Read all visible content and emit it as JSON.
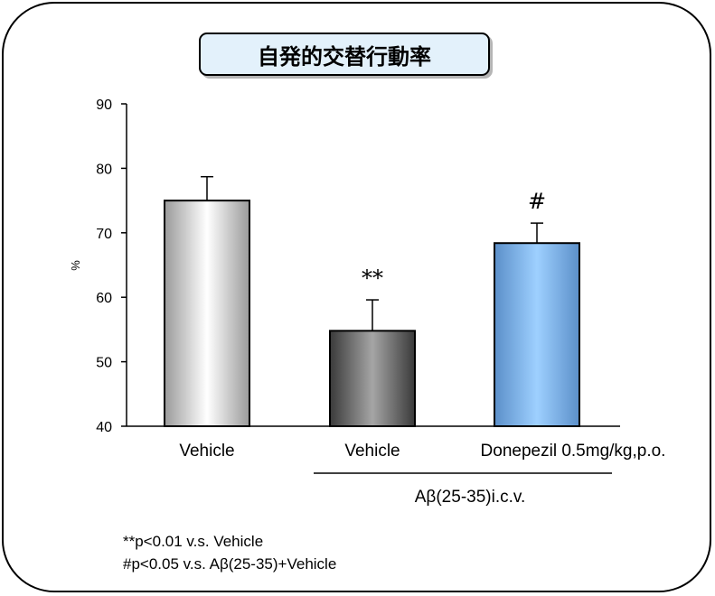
{
  "chart_data": {
    "type": "bar",
    "title": "自発的交替行動率",
    "ylabel": "%",
    "ylim": [
      40,
      90
    ],
    "yticks": [
      40,
      50,
      60,
      70,
      80,
      90
    ],
    "categories": [
      "Vehicle",
      "Vehicle",
      "Donepezil 0.5mg/kg,p.o."
    ],
    "values": [
      75.0,
      54.8,
      68.4
    ],
    "errors": [
      3.7,
      4.8,
      3.1
    ],
    "significance": [
      "",
      "**",
      "#"
    ],
    "group_label": "Aβ(25-35)i.c.v.",
    "group_categories": [
      1,
      2
    ],
    "footnotes": [
      "**p<0.01 v.s. Vehicle",
      "#p<0.05 v.s. Aβ(25-35)+Vehicle"
    ],
    "bar_colors": [
      "#ffffff",
      "#5c5c5c",
      "#8fc6f5"
    ],
    "legend": "none",
    "grid": false
  }
}
